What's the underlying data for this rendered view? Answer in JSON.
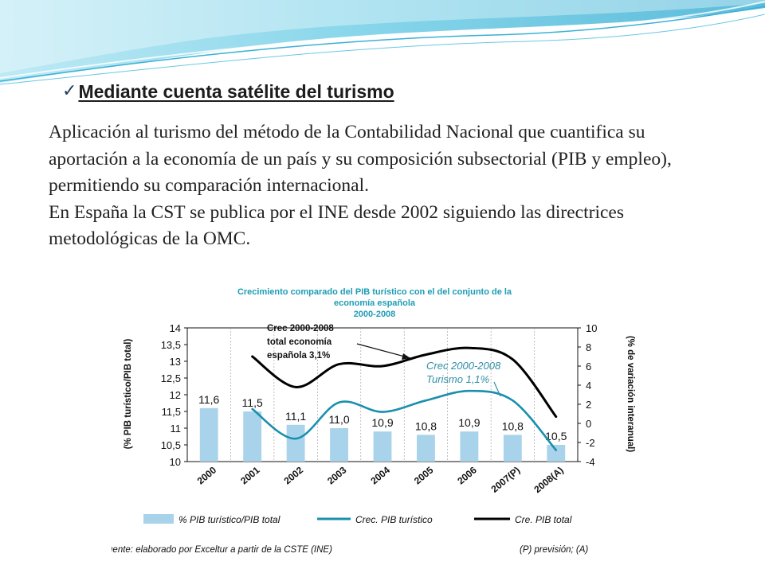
{
  "slide": {
    "heading": "Mediante cuenta satélite del turismo",
    "check_icon": "checkmark-icon",
    "paragraphs": [
      "Aplicación al turismo del método de la Contabilidad Nacional que cuantifica su aportación a la economía de un país y su composición subsectorial (PIB y empleo), permitiendo su comparación internacional.",
      "En España la CST se publica por el  INE desde 2002 siguiendo las directrices metodológicas de la OMC."
    ]
  },
  "chart_data": {
    "type": "bar",
    "title": [
      "Crecimiento comparado del PIB turístico con el del conjunto de la",
      "economía española",
      "2000-2008"
    ],
    "categories": [
      "2000",
      "2001",
      "2002",
      "2003",
      "2004",
      "2005",
      "2006",
      "2007(P)",
      "2008(A)"
    ],
    "y_left": {
      "label": "(% PIB turístico/PIB total)",
      "ylim": [
        10,
        14
      ],
      "ticks": [
        "10",
        "10,5",
        "11",
        "11,5",
        "12",
        "12,5",
        "13",
        "13,5",
        "14"
      ]
    },
    "y_right": {
      "label": "(% de variación interanual)",
      "ylim": [
        -4,
        10
      ],
      "ticks": [
        "-4",
        "-2",
        "0",
        "2",
        "4",
        "6",
        "8",
        "10"
      ]
    },
    "series": [
      {
        "name": "% PIB turístico/PIB total",
        "kind": "bar",
        "axis": "left",
        "color": "#a9d3ea",
        "values": [
          11.6,
          11.5,
          11.1,
          11.0,
          10.9,
          10.8,
          10.9,
          10.8,
          10.5
        ],
        "labels": [
          "11,6",
          "11,5",
          "11,1",
          "11,0",
          "10,9",
          "10,8",
          "10,9",
          "10,8",
          "10,5"
        ]
      },
      {
        "name": "Crec. PIB turístico",
        "kind": "line",
        "axis": "right",
        "color": "#1a8fae",
        "x": [
          1,
          2,
          3,
          4,
          5,
          6,
          7,
          8
        ],
        "values": [
          1.5,
          -1.6,
          2.2,
          1.2,
          2.4,
          3.4,
          2.4,
          -2.8
        ]
      },
      {
        "name": "Cre. PIB total",
        "kind": "line",
        "axis": "right",
        "color": "#000000",
        "x": [
          1,
          2,
          3,
          4,
          5,
          6,
          7,
          8
        ],
        "values": [
          7.0,
          3.8,
          6.2,
          6.0,
          7.2,
          7.9,
          6.7,
          0.7
        ]
      }
    ],
    "annotations": [
      {
        "text": [
          "Crec 2000-2008",
          "total economía",
          "española 3,1%"
        ],
        "style": "bold"
      },
      {
        "text": [
          "Crec 2000-2008",
          "Turismo 1,1%"
        ],
        "style": "italic-blue"
      }
    ],
    "source": "Fuente: elaborado por Exceltur a partir de la CSTE (INE)",
    "note": "(P) previsión; (A)"
  }
}
